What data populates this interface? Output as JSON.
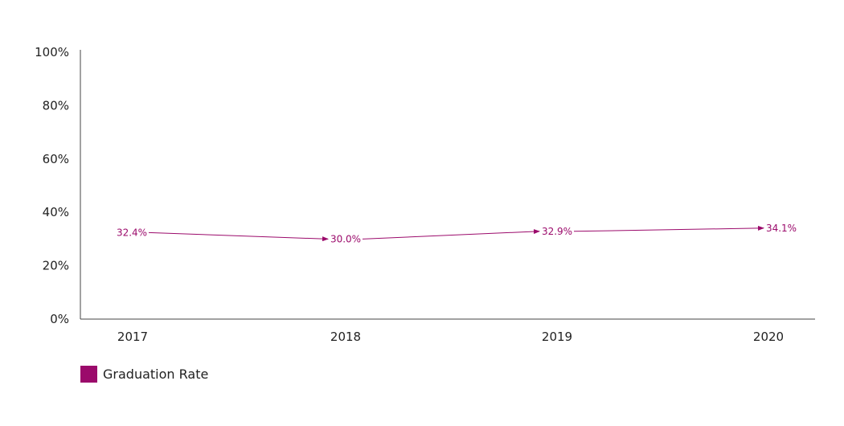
{
  "chart_data": {
    "type": "line",
    "categories": [
      "2017",
      "2018",
      "2019",
      "2020"
    ],
    "series": [
      {
        "name": "Graduation Rate",
        "values": [
          32.4,
          30.0,
          32.9,
          34.1
        ],
        "labels": [
          "32.4%",
          "30.0%",
          "32.9%",
          "34.1%"
        ],
        "color": "#9b0a6b"
      }
    ],
    "y_ticks": [
      "0%",
      "20%",
      "40%",
      "60%",
      "80%",
      "100%"
    ],
    "ylim": [
      0,
      100
    ],
    "xlabel": "",
    "ylabel": "",
    "grid": false,
    "legend_position": "bottom-left"
  }
}
